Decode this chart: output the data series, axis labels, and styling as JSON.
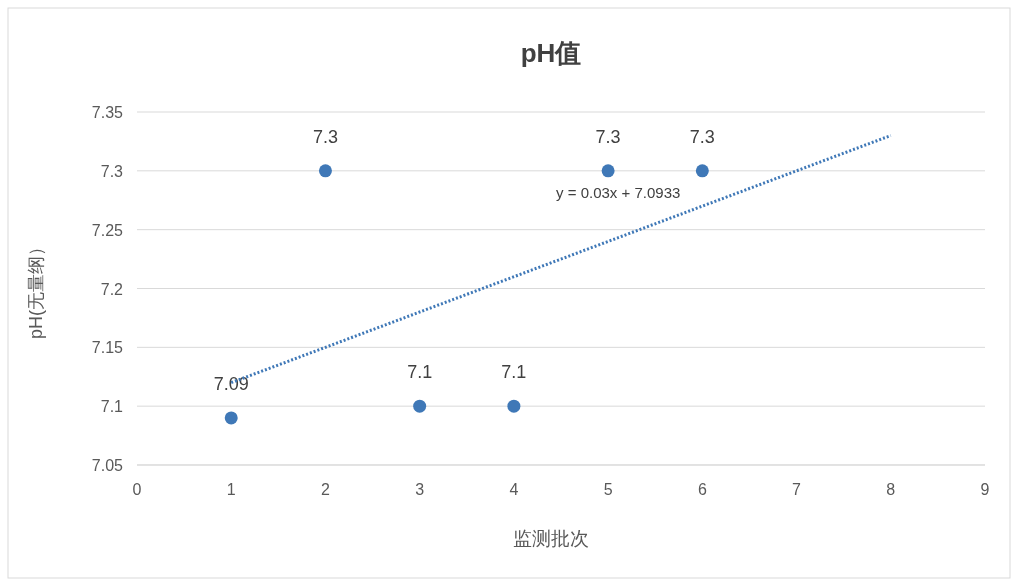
{
  "chart_data": {
    "type": "scatter",
    "title": "pH值",
    "xlabel": "监测批次",
    "ylabel": "pH(无量纲）",
    "xlim": [
      0,
      9
    ],
    "xticks": [
      0,
      1,
      2,
      3,
      4,
      5,
      6,
      7,
      8,
      9
    ],
    "ylim": [
      7.05,
      7.35
    ],
    "yticks": [
      7.05,
      7.1,
      7.15,
      7.2,
      7.25,
      7.3,
      7.35
    ],
    "grid": "y",
    "marker": "circle",
    "series": [
      {
        "color": "#3f78b7",
        "x": [
          1,
          2,
          3,
          4,
          5,
          6
        ],
        "values": [
          7.09,
          7.3,
          7.1,
          7.1,
          7.3,
          7.3
        ],
        "value_labels": [
          "7.09",
          "7.3",
          "7.1",
          "7.1",
          "7.3",
          "7.3"
        ]
      },
      {
        "type": "line",
        "color": "#3f78b7",
        "x": [
          1,
          8
        ],
        "values": [
          7.12,
          7.33
        ],
        "marker": "none",
        "line_style": "dotted"
      }
    ],
    "annotations": [
      {
        "text": "y = 0.03x + 7.0933",
        "x": 6,
        "y": 7.2733
      }
    ]
  }
}
